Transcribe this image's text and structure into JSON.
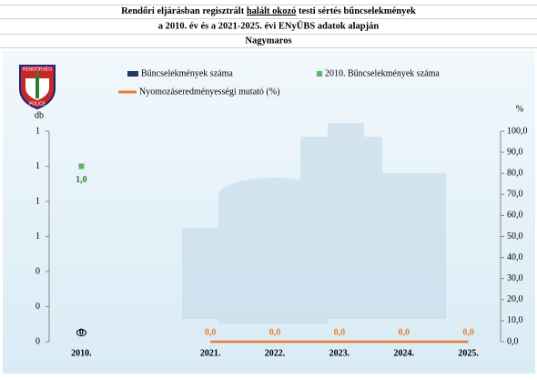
{
  "chart_data": {
    "type": "combo",
    "title": {
      "line1_before": "Rendőri eljárásban regisztrált ",
      "line1_underlined": "halált okozó",
      "line1_after": " testi sértés bűncselekmények",
      "line2": "a 2010. év és a 2021-2025. évi ENyÜBS adatok alapján",
      "line3": "Nagymaros"
    },
    "logo": {
      "top": "RENDŐRSÉG",
      "bottom": "POLICE"
    },
    "ylabel": "db",
    "y2label": "%",
    "categories": [
      "2010.",
      null,
      "2021.",
      "2022.",
      "2023.",
      "2024.",
      "2025."
    ],
    "ylim": [
      0,
      1.2
    ],
    "yticks": [
      {
        "value": 0,
        "label": "0"
      },
      {
        "value": 0.2,
        "label": "0"
      },
      {
        "value": 0.4,
        "label": "0"
      },
      {
        "value": 0.6,
        "label": "1"
      },
      {
        "value": 0.8,
        "label": "1"
      },
      {
        "value": 1.0,
        "label": "1"
      },
      {
        "value": 1.2,
        "label": "1"
      }
    ],
    "y2lim": [
      0,
      100
    ],
    "y2ticks": [
      {
        "value": 0,
        "label": "0,0"
      },
      {
        "value": 10,
        "label": "10,0"
      },
      {
        "value": 20,
        "label": "20,0"
      },
      {
        "value": 30,
        "label": "30,0"
      },
      {
        "value": 40,
        "label": "40,0"
      },
      {
        "value": 50,
        "label": "50,0"
      },
      {
        "value": 60,
        "label": "60,0"
      },
      {
        "value": 70,
        "label": "70,0"
      },
      {
        "value": 80,
        "label": "80,0"
      },
      {
        "value": 90,
        "label": "90,0"
      },
      {
        "value": 100,
        "label": "100,0"
      }
    ],
    "series": [
      {
        "name": "Bűncselekmények száma",
        "kind": "bar",
        "color": "#1f3864",
        "values": [
          0,
          null,
          null,
          null,
          null,
          null,
          null
        ],
        "value_labels": [
          "0",
          null,
          null,
          null,
          null,
          null,
          null
        ]
      },
      {
        "name": "2010. Bűncselekmények száma",
        "kind": "marker",
        "color": "#5cb85c",
        "label_color": "#2e7d32",
        "values": [
          1.0,
          null,
          null,
          null,
          null,
          null,
          null
        ],
        "value_labels": [
          "1,0",
          null,
          null,
          null,
          null,
          null,
          null
        ]
      },
      {
        "name": "Nyomozáseredményességi mutató (%)",
        "kind": "line",
        "axis": "y2",
        "color": "#ed7d31",
        "values": [
          null,
          null,
          0,
          0,
          0,
          0,
          0
        ],
        "value_labels": [
          null,
          null,
          "0,0",
          "0,0",
          "0,0",
          "0,0",
          "0,0"
        ]
      }
    ]
  }
}
